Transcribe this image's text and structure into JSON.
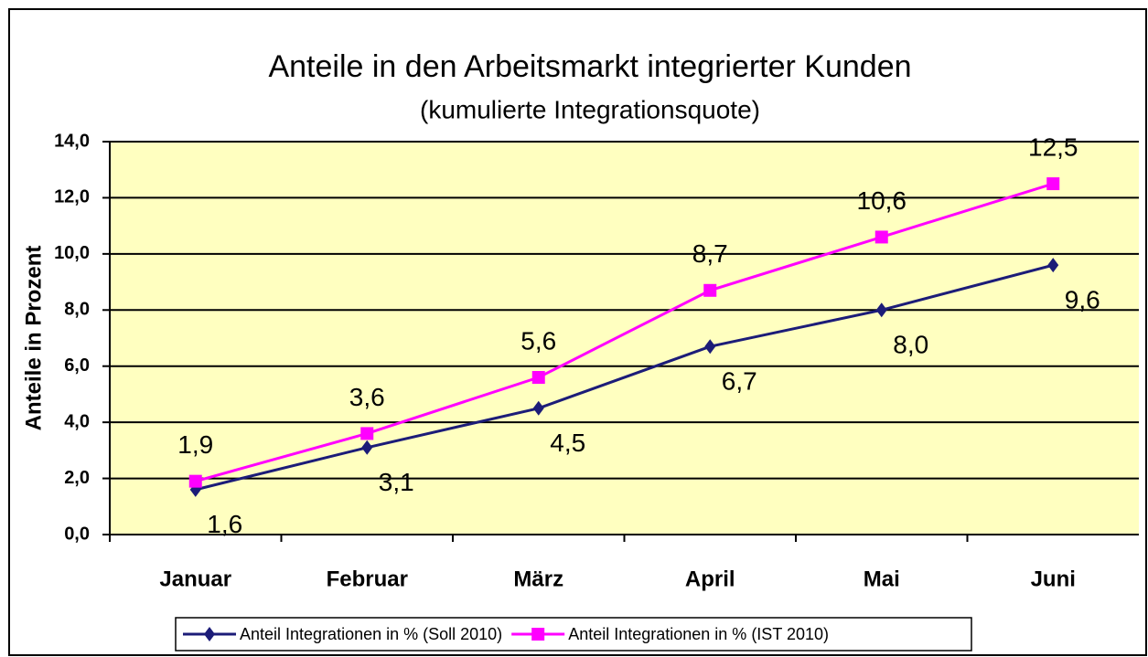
{
  "chart_data": {
    "type": "line",
    "title": "Anteile in den Arbeitsmarkt integrierter Kunden",
    "subtitle": "(kumulierte Integrationsquote)",
    "y_label": "Anteile in Prozent",
    "categories": [
      "Januar",
      "Februar",
      "März",
      "April",
      "Mai",
      "Juni"
    ],
    "series": [
      {
        "name": "Anteil Integrationen in % (Soll 2010)",
        "color": "#1c1c78",
        "marker": "diamond",
        "values": [
          1.6,
          3.1,
          4.5,
          6.7,
          8.0,
          9.6
        ],
        "value_labels": [
          "1,6",
          "3,1",
          "4,5",
          "6,7",
          "8,0",
          "9,6"
        ]
      },
      {
        "name": "Anteil Integrationen in % (IST 2010)",
        "color": "#ff00ff",
        "marker": "square",
        "values": [
          1.9,
          3.6,
          5.6,
          8.7,
          10.6,
          12.5
        ],
        "value_labels": [
          "1,9",
          "3,6",
          "5,6",
          "8,7",
          "10,6",
          "12,5"
        ]
      }
    ],
    "ylim": [
      0,
      14
    ],
    "yticks": [
      {
        "value": 0,
        "label": "0,0"
      },
      {
        "value": 2,
        "label": "2,0"
      },
      {
        "value": 4,
        "label": "4,0"
      },
      {
        "value": 6,
        "label": "6,0"
      },
      {
        "value": 8,
        "label": "8,0"
      },
      {
        "value": 10,
        "label": "10,0"
      },
      {
        "value": 12,
        "label": "12,0"
      },
      {
        "value": 14,
        "label": "14,0"
      }
    ],
    "grid": true,
    "plot_background": "#ffffc0",
    "legend": "bottom"
  }
}
